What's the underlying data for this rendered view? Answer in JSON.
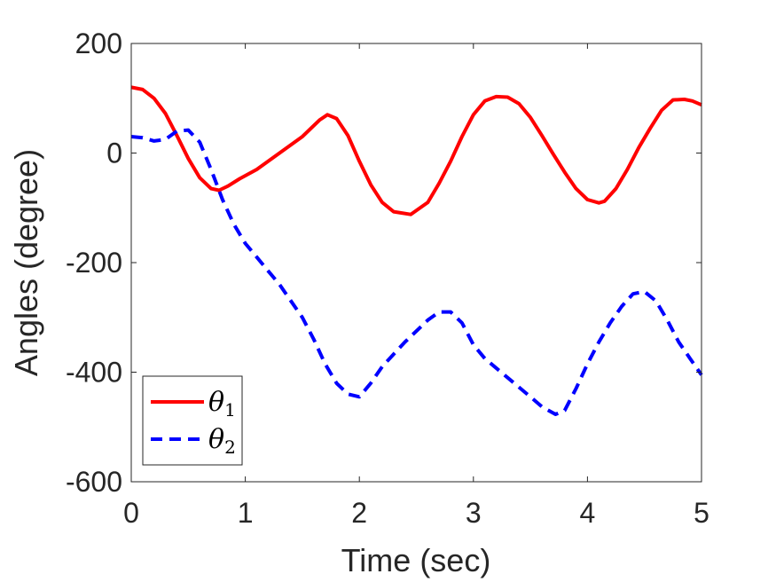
{
  "chart_data": {
    "type": "line",
    "title": "",
    "xlabel": "Time (sec)",
    "ylabel": "Angles (degree)",
    "xlim": [
      0,
      5
    ],
    "ylim": [
      -600,
      200
    ],
    "xticks": [
      0,
      1,
      2,
      3,
      4,
      5
    ],
    "yticks": [
      200,
      0,
      -200,
      -400,
      -600
    ],
    "grid": false,
    "legend_position": "bottom-left",
    "series": [
      {
        "name": "θ1",
        "label_base": "θ",
        "label_sub": "1",
        "color": "#ff0000",
        "style": "solid",
        "x": [
          0,
          0.1,
          0.2,
          0.3,
          0.4,
          0.5,
          0.6,
          0.7,
          0.77,
          0.85,
          0.95,
          1.1,
          1.3,
          1.5,
          1.65,
          1.72,
          1.8,
          1.9,
          2.0,
          2.1,
          2.2,
          2.3,
          2.45,
          2.6,
          2.7,
          2.8,
          2.9,
          3.0,
          3.1,
          3.2,
          3.3,
          3.4,
          3.5,
          3.6,
          3.7,
          3.8,
          3.9,
          4.0,
          4.1,
          4.15,
          4.25,
          4.35,
          4.45,
          4.55,
          4.65,
          4.75,
          4.85,
          4.92,
          5.0
        ],
        "y": [
          120,
          116,
          100,
          72,
          32,
          -10,
          -45,
          -65,
          -68,
          -60,
          -47,
          -30,
          0,
          30,
          60,
          70,
          63,
          32,
          -15,
          -58,
          -90,
          -107,
          -112,
          -90,
          -55,
          -15,
          30,
          70,
          95,
          103,
          102,
          90,
          65,
          32,
          -2,
          -35,
          -65,
          -85,
          -91,
          -88,
          -65,
          -30,
          10,
          45,
          78,
          97,
          98,
          95,
          88
        ]
      },
      {
        "name": "θ2",
        "label_base": "θ",
        "label_sub": "2",
        "color": "#0000ff",
        "style": "dashed",
        "x": [
          0,
          0.1,
          0.2,
          0.3,
          0.4,
          0.5,
          0.6,
          0.7,
          0.8,
          0.9,
          1.0,
          1.1,
          1.2,
          1.3,
          1.4,
          1.5,
          1.6,
          1.7,
          1.8,
          1.9,
          2.0,
          2.1,
          2.2,
          2.4,
          2.6,
          2.7,
          2.8,
          2.9,
          3.0,
          3.1,
          3.3,
          3.5,
          3.6,
          3.72,
          3.8,
          3.9,
          4.0,
          4.1,
          4.2,
          4.3,
          4.4,
          4.5,
          4.6,
          4.7,
          4.8,
          4.9,
          5.0
        ],
        "y": [
          30,
          28,
          22,
          25,
          40,
          42,
          20,
          -30,
          -85,
          -130,
          -165,
          -190,
          -215,
          -240,
          -270,
          -300,
          -340,
          -385,
          -420,
          -440,
          -445,
          -420,
          -390,
          -345,
          -305,
          -290,
          -290,
          -310,
          -350,
          -375,
          -410,
          -445,
          -463,
          -477,
          -470,
          -430,
          -385,
          -345,
          -310,
          -280,
          -257,
          -253,
          -270,
          -305,
          -345,
          -375,
          -405
        ]
      }
    ]
  }
}
